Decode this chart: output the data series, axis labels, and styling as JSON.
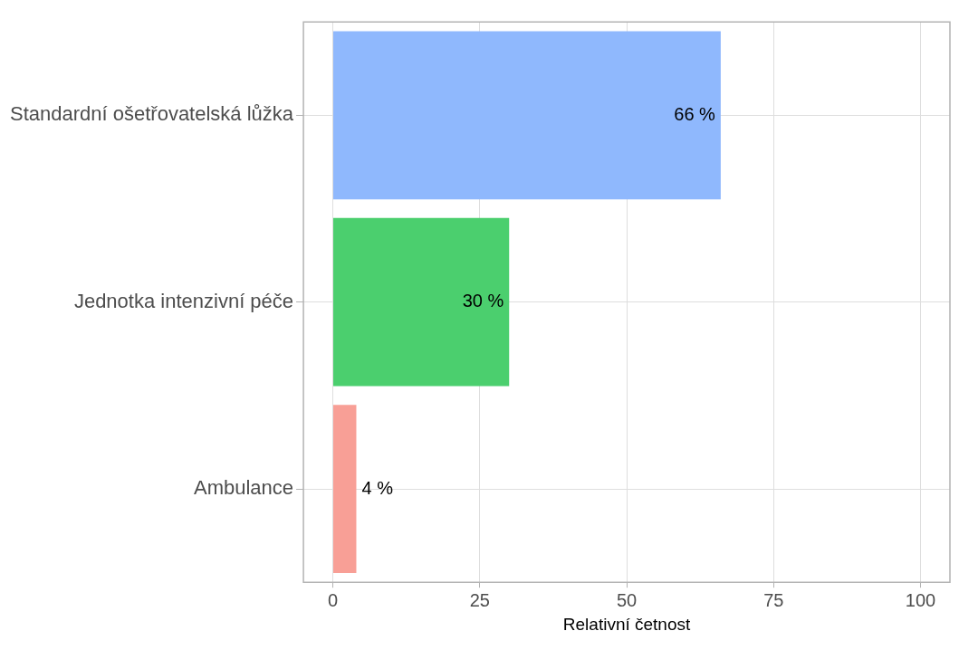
{
  "chart_data": {
    "type": "bar",
    "orientation": "horizontal",
    "xlabel": "Relativní četnost",
    "categories": [
      "Standardní ošetřovatelská lůžka",
      "Jednotka intenzivní péče",
      "Ambulance"
    ],
    "values": [
      66,
      30,
      4
    ],
    "colors": [
      "#8fb8fd",
      "#4bcf6e",
      "#f89f96"
    ],
    "value_labels": [
      "66 %",
      "30 %",
      "4 %"
    ],
    "xlim": [
      -5,
      105
    ],
    "xticks": [
      0,
      25,
      50,
      75,
      100
    ],
    "grid": true,
    "legend": false
  }
}
